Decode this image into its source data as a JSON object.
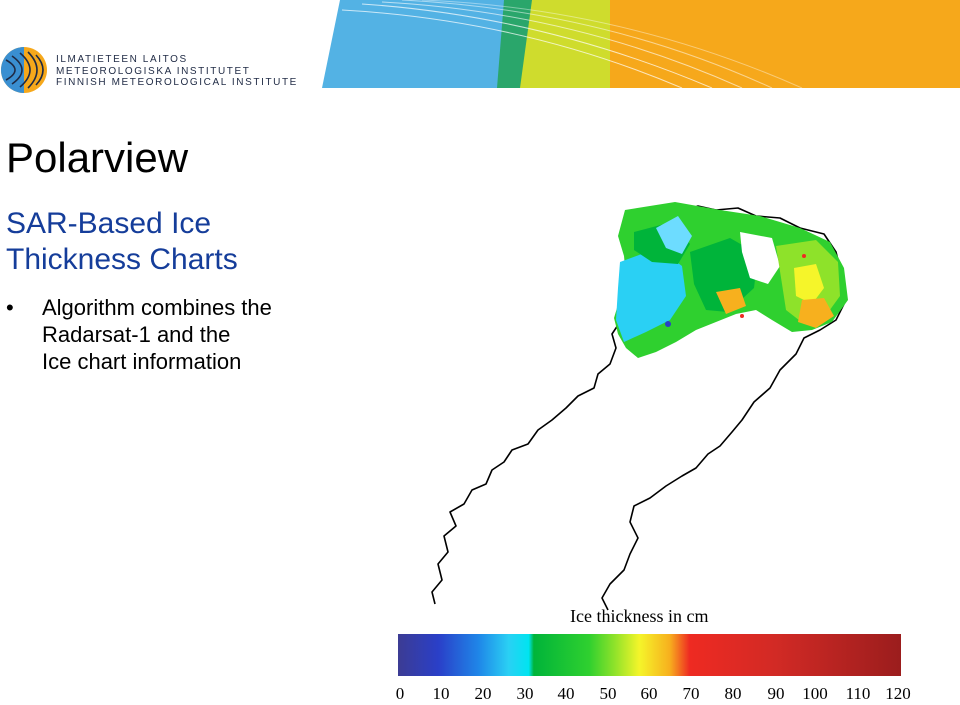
{
  "header": {
    "org_lines": [
      "ILMATIETEEN LAITOS",
      "METEOROLOGISKA INSTITUTET",
      "FINNISH METEOROLOGICAL INSTITUTE"
    ],
    "logo_icon": "fmi-logo-icon",
    "banner_colors": [
      "#53b2e4",
      "#2aa66b",
      "#cfdc2d",
      "#f6a81b"
    ]
  },
  "slide": {
    "title": "Polarview",
    "subtitle_lines": [
      "SAR-Based Ice",
      "Thickness Charts"
    ],
    "bullet_lines": [
      "Algorithm combines the",
      "Radarsat-1 and the",
      "Ice chart information"
    ]
  },
  "legend": {
    "title": "Ice thickness in cm",
    "ticks": [
      "0",
      "10",
      "20",
      "30",
      "40",
      "50",
      "60",
      "70",
      "80",
      "90",
      "100",
      "110",
      "120"
    ],
    "colors": [
      "#3c3c93",
      "#2a3fc8",
      "#1f86e8",
      "#2ad0f4",
      "#00e4f0",
      "#00b43a",
      "#2fd02f",
      "#8ee22a",
      "#f5f52a",
      "#f7b01e",
      "#ee2a22",
      "#d22a25",
      "#9b1d1d"
    ]
  }
}
